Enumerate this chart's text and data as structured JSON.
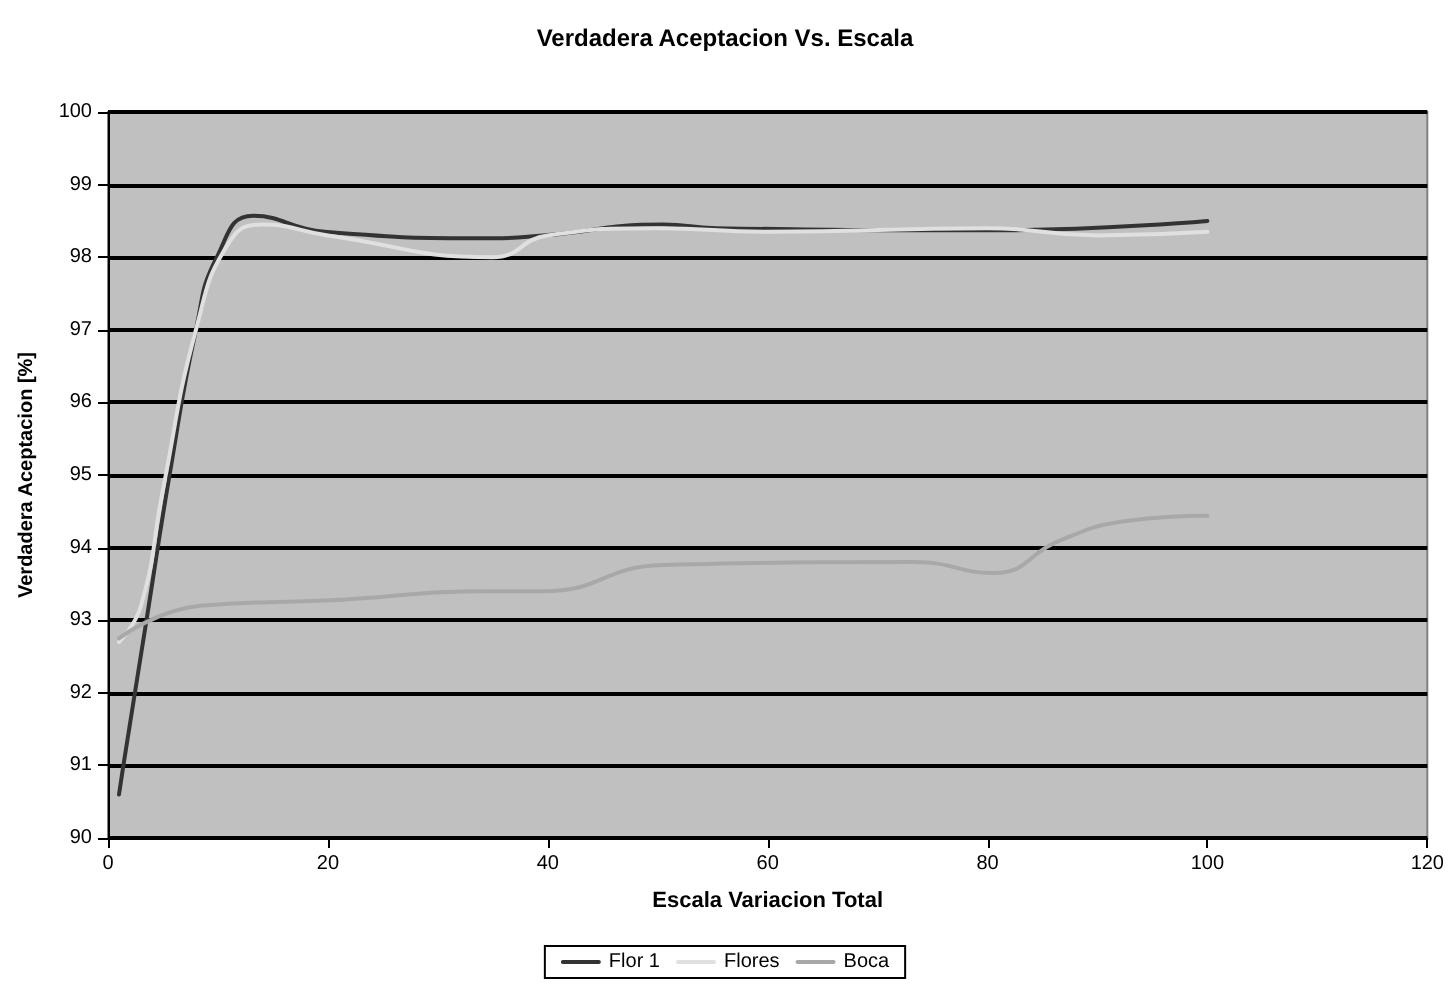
{
  "chart_data": {
    "type": "line",
    "title": "Verdadera Aceptacion Vs. Escala",
    "xlabel": "Escala Variacion Total",
    "ylabel": "Verdadera Aceptacion [%]",
    "xlim": [
      0,
      120
    ],
    "xticks": [
      0,
      20,
      40,
      60,
      80,
      100,
      120
    ],
    "ylim": [
      90,
      100
    ],
    "yticks": [
      90,
      91,
      92,
      93,
      94,
      95,
      96,
      97,
      98,
      99,
      100
    ],
    "grid": "y",
    "legend": "bottom",
    "marker": "none",
    "line_style": "solid",
    "series": [
      {
        "name": "Flor 1",
        "color": "#333333",
        "x": [
          1,
          1.4,
          3.5,
          5.6,
          8,
          9.9,
          13.2,
          19.7,
          35,
          39.6,
          50.5,
          55.3,
          80.6,
          100
        ],
        "values": [
          90.6,
          91,
          93,
          95,
          97,
          98,
          98.57,
          98.35,
          98.26,
          98.3,
          98.45,
          98.4,
          98.37,
          98.5
        ]
      },
      {
        "name": "Flores",
        "color": "#e0e0e0",
        "x": [
          1,
          3,
          5,
          8,
          11,
          14,
          20,
          35,
          40,
          50,
          60,
          80,
          90,
          100
        ],
        "values": [
          92.7,
          93.2,
          94.8,
          97,
          98.2,
          98.45,
          98.3,
          98,
          98.3,
          98.4,
          98.35,
          98.4,
          98.3,
          98.35
        ]
      },
      {
        "name": "Boca",
        "color": "#a8a8a8",
        "x": [
          1,
          8.4,
          19.7,
          35,
          39.6,
          50.5,
          73.4,
          80.6,
          86.6,
          92.8,
          100
        ],
        "values": [
          92.75,
          93.2,
          93.27,
          93.4,
          93.4,
          93.76,
          93.8,
          93.65,
          94.1,
          94.37,
          94.44
        ]
      }
    ]
  }
}
